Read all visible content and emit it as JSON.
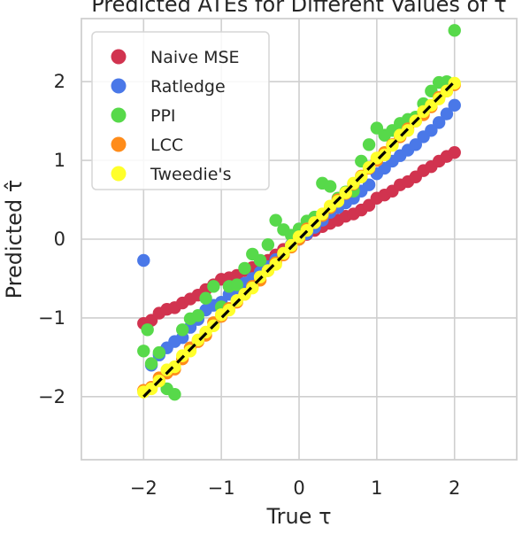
{
  "chart_data": {
    "type": "scatter",
    "title": "Predicted ATEs for Different Values of τ",
    "xlabel": "True τ",
    "ylabel": "Predicted τ̂",
    "xlim": [
      -2.8,
      2.8
    ],
    "ylim": [
      -2.8,
      2.8
    ],
    "xticks": [
      -2,
      -1,
      0,
      1,
      2
    ],
    "yticks": [
      -2,
      -1,
      0,
      1,
      2
    ],
    "xtick_labels": [
      "−2",
      "−1",
      "0",
      "1",
      "2"
    ],
    "ytick_labels": [
      "−2",
      "−1",
      "0",
      "1",
      "2"
    ],
    "grid": true,
    "legend_position": "top-left",
    "reference_line": {
      "style": "dashed",
      "color": "#000000",
      "x": [
        -2,
        2
      ],
      "y": [
        -2,
        2
      ]
    },
    "series": [
      {
        "name": "Naive MSE",
        "color": "#d1334f",
        "x": [
          -2.0,
          -1.9,
          -1.8,
          -1.7,
          -1.6,
          -1.5,
          -1.4,
          -1.3,
          -1.2,
          -1.1,
          -1.0,
          -0.9,
          -0.8,
          -0.7,
          -0.6,
          -0.5,
          -0.4,
          -0.3,
          -0.2,
          -0.1,
          0.0,
          0.1,
          0.2,
          0.3,
          0.4,
          0.5,
          0.6,
          0.7,
          0.8,
          0.9,
          1.0,
          1.1,
          1.2,
          1.3,
          1.4,
          1.5,
          1.6,
          1.7,
          1.8,
          1.9,
          2.0
        ],
        "y": [
          -1.07,
          -1.03,
          -0.94,
          -0.89,
          -0.87,
          -0.81,
          -0.76,
          -0.71,
          -0.64,
          -0.58,
          -0.51,
          -0.49,
          -0.46,
          -0.4,
          -0.36,
          -0.31,
          -0.27,
          -0.2,
          -0.13,
          -0.07,
          0.0,
          0.06,
          0.11,
          0.16,
          0.2,
          0.24,
          0.29,
          0.32,
          0.37,
          0.43,
          0.52,
          0.56,
          0.61,
          0.69,
          0.73,
          0.79,
          0.87,
          0.92,
          0.99,
          1.05,
          1.1
        ]
      },
      {
        "name": "Ratledge",
        "color": "#4a78e8",
        "x": [
          -2.0,
          -1.9,
          -1.8,
          -1.7,
          -1.6,
          -1.5,
          -1.4,
          -1.3,
          -1.2,
          -1.1,
          -1.0,
          -0.9,
          -0.8,
          -0.7,
          -0.6,
          -0.5,
          -0.4,
          -0.3,
          -0.2,
          -0.1,
          0.0,
          0.1,
          0.2,
          0.3,
          0.4,
          0.5,
          0.6,
          0.7,
          0.8,
          0.9,
          1.0,
          1.1,
          1.2,
          1.3,
          1.4,
          1.5,
          1.6,
          1.7,
          1.8,
          1.9,
          2.0
        ],
        "y": [
          -0.27,
          -1.6,
          -1.47,
          -1.38,
          -1.3,
          -1.25,
          -1.12,
          -1.02,
          -0.9,
          -0.84,
          -0.8,
          -0.7,
          -0.62,
          -0.56,
          -0.5,
          -0.42,
          -0.35,
          -0.26,
          -0.18,
          -0.07,
          0.0,
          0.07,
          0.15,
          0.24,
          0.34,
          0.4,
          0.46,
          0.52,
          0.61,
          0.69,
          0.83,
          0.9,
          0.99,
          1.06,
          1.13,
          1.2,
          1.3,
          1.38,
          1.48,
          1.59,
          1.7
        ]
      },
      {
        "name": "PPI",
        "color": "#57d94a",
        "x": [
          -2.0,
          -1.95,
          -1.9,
          -1.8,
          -1.7,
          -1.6,
          -1.5,
          -1.4,
          -1.3,
          -1.2,
          -1.1,
          -1.0,
          -0.9,
          -0.8,
          -0.7,
          -0.6,
          -0.5,
          -0.4,
          -0.3,
          -0.2,
          -0.1,
          0.0,
          0.1,
          0.2,
          0.3,
          0.4,
          0.5,
          0.6,
          0.7,
          0.8,
          0.9,
          1.0,
          1.1,
          1.2,
          1.3,
          1.4,
          1.5,
          1.6,
          1.7,
          1.8,
          1.9,
          2.0
        ],
        "y": [
          -1.42,
          -1.15,
          -1.58,
          -1.44,
          -1.9,
          -1.97,
          -1.15,
          -1.01,
          -0.97,
          -0.75,
          -0.6,
          -0.86,
          -0.6,
          -0.58,
          -0.37,
          -0.19,
          -0.27,
          -0.07,
          0.24,
          0.12,
          0.05,
          0.13,
          0.23,
          0.28,
          0.71,
          0.67,
          0.52,
          0.6,
          0.61,
          0.99,
          1.2,
          1.41,
          1.32,
          1.38,
          1.47,
          1.52,
          1.55,
          1.72,
          1.88,
          1.99,
          2.0,
          2.65
        ]
      },
      {
        "name": "LCC",
        "color": "#ff8c1a",
        "x": [
          -2.0,
          -1.9,
          -1.8,
          -1.7,
          -1.6,
          -1.5,
          -1.4,
          -1.3,
          -1.2,
          -1.1,
          -1.0,
          -0.9,
          -0.8,
          -0.7,
          -0.6,
          -0.5,
          -0.4,
          -0.3,
          -0.2,
          -0.1,
          0.0,
          0.1,
          0.2,
          0.3,
          0.4,
          0.5,
          0.6,
          0.7,
          0.8,
          0.9,
          1.0,
          1.1,
          1.2,
          1.3,
          1.4,
          1.5,
          1.6,
          1.7,
          1.8,
          1.9,
          2.0
        ],
        "y": [
          -1.92,
          -1.88,
          -1.76,
          -1.7,
          -1.65,
          -1.52,
          -1.38,
          -1.3,
          -1.22,
          -1.06,
          -0.98,
          -0.88,
          -0.8,
          -0.7,
          -0.6,
          -0.52,
          -0.4,
          -0.3,
          -0.2,
          -0.1,
          0.0,
          0.13,
          0.21,
          0.3,
          0.4,
          0.5,
          0.58,
          0.7,
          0.8,
          0.9,
          1.0,
          1.1,
          1.2,
          1.3,
          1.4,
          1.5,
          1.58,
          1.68,
          1.8,
          1.88,
          1.96
        ]
      },
      {
        "name": "Tweedie's",
        "color": "#ffff2b",
        "x": [
          -2.0,
          -1.9,
          -1.8,
          -1.7,
          -1.6,
          -1.5,
          -1.4,
          -1.3,
          -1.2,
          -1.1,
          -1.0,
          -0.9,
          -0.8,
          -0.7,
          -0.6,
          -0.5,
          -0.4,
          -0.3,
          -0.2,
          -0.1,
          0.0,
          0.1,
          0.2,
          0.3,
          0.4,
          0.5,
          0.6,
          0.7,
          0.8,
          0.9,
          1.0,
          1.1,
          1.2,
          1.3,
          1.4,
          1.5,
          1.6,
          1.7,
          1.8,
          1.9,
          2.0
        ],
        "y": [
          -1.94,
          -1.9,
          -1.8,
          -1.66,
          -1.62,
          -1.48,
          -1.42,
          -1.28,
          -1.18,
          -1.1,
          -0.96,
          -0.9,
          -0.78,
          -0.7,
          -0.62,
          -0.48,
          -0.4,
          -0.32,
          -0.18,
          -0.08,
          0.03,
          0.11,
          0.21,
          0.32,
          0.42,
          0.48,
          0.59,
          0.71,
          0.79,
          0.91,
          1.03,
          1.07,
          1.19,
          1.32,
          1.38,
          1.5,
          1.62,
          1.7,
          1.78,
          1.88,
          1.98
        ]
      }
    ]
  }
}
